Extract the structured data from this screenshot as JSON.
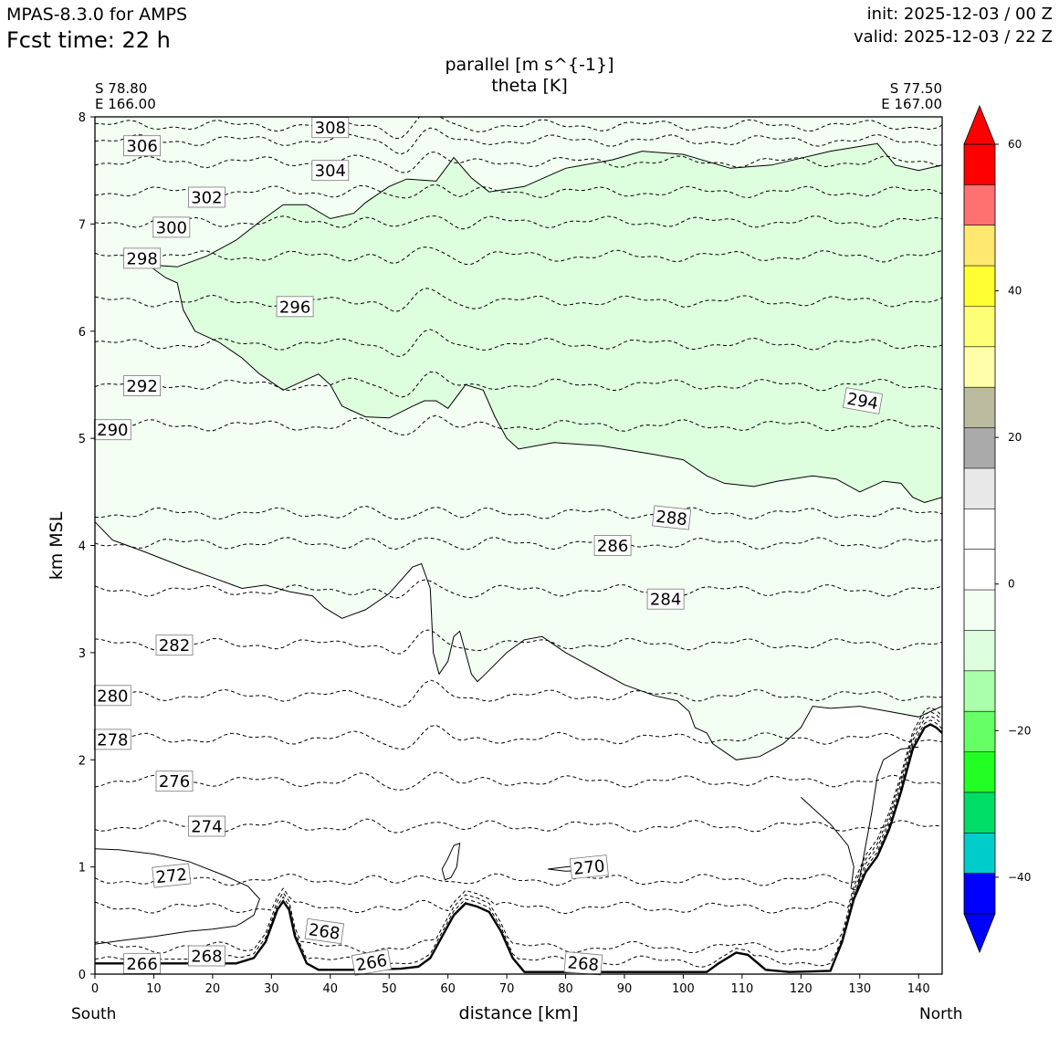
{
  "header": {
    "model": "MPAS-8.3.0 for AMPS",
    "fcst": "Fcst time:   22 h",
    "init": "init: 2025-12-03 / 00 Z",
    "valid": "valid: 2025-12-03 / 22 Z"
  },
  "chart_data": {
    "type": "cross-section contour",
    "title": "parallel [m s^{-1}]",
    "subtitle": "theta [K]",
    "xlabel": "distance [km]",
    "ylabel": "km MSL",
    "xlim": [
      0,
      144
    ],
    "ylim": [
      0,
      8
    ],
    "x_ticks": [
      "0",
      "10",
      "20",
      "30",
      "40",
      "50",
      "60",
      "70",
      "80",
      "90",
      "100",
      "110",
      "120",
      "130",
      "140"
    ],
    "y_ticks": [
      "0",
      "1",
      "2",
      "3",
      "4",
      "5",
      "6",
      "7",
      "8"
    ],
    "start_point": {
      "lat": "S 78.80",
      "lon": "E 166.00",
      "label": "South"
    },
    "end_point": {
      "lat": "S 77.50",
      "lon": "E 167.00",
      "label": "North"
    },
    "colorbar": {
      "levels": [
        -50,
        -45,
        -40,
        -35,
        -30,
        -25,
        -20,
        -15,
        -10,
        -5,
        0,
        5,
        10,
        15,
        20,
        25,
        30,
        35,
        40,
        45,
        50,
        55,
        60
      ],
      "colors": [
        "#0000ff",
        "#00cccc",
        "#00dd66",
        "#22ff22",
        "#66ff66",
        "#aaffaa",
        "#ddffdd",
        "#f2fff2",
        "#ffffff",
        "#ffffff",
        "#e8e8e8",
        "#aaaaaa",
        "#bbbba0",
        "#ffffaa",
        "#ffff77",
        "#ffff33",
        "#ffe870",
        "#ff7070",
        "#ff0000"
      ],
      "tick_labels": [
        "60",
        "40",
        "20",
        "0",
        "−20",
        "−40"
      ],
      "tick_values": [
        60,
        40,
        20,
        0,
        -20,
        -40
      ]
    },
    "theta_levels": [
      266,
      268,
      270,
      272,
      274,
      276,
      278,
      280,
      282,
      284,
      286,
      288,
      290,
      292,
      294,
      296,
      298,
      300,
      302,
      304,
      306,
      308
    ],
    "theta_baseline_heights_km": [
      0.12,
      0.25,
      0.62,
      0.88,
      1.38,
      1.8,
      2.2,
      2.6,
      3.08,
      3.58,
      4.02,
      4.3,
      5.12,
      5.5,
      5.88,
      6.28,
      6.7,
      7.02,
      7.3,
      7.58,
      7.78,
      7.92
    ],
    "contour_labels": [
      {
        "text": "306",
        "x": 8,
        "y": 7.73,
        "rot": 0
      },
      {
        "text": "308",
        "x": 40,
        "y": 7.9,
        "rot": 0
      },
      {
        "text": "304",
        "x": 40,
        "y": 7.5,
        "rot": 0
      },
      {
        "text": "302",
        "x": 19,
        "y": 7.25,
        "rot": 0
      },
      {
        "text": "300",
        "x": 13,
        "y": 6.97,
        "rot": 0
      },
      {
        "text": "298",
        "x": 8,
        "y": 6.68,
        "rot": 0
      },
      {
        "text": "296",
        "x": 34,
        "y": 6.23,
        "rot": 0
      },
      {
        "text": "292",
        "x": 8,
        "y": 5.49,
        "rot": 0
      },
      {
        "text": "290",
        "x": 3,
        "y": 5.08,
        "rot": 0
      },
      {
        "text": "294",
        "x": 130.5,
        "y": 5.35,
        "rot": 10
      },
      {
        "text": "288",
        "x": 98,
        "y": 4.26,
        "rot": 6
      },
      {
        "text": "286",
        "x": 88,
        "y": 4.0,
        "rot": 0
      },
      {
        "text": "284",
        "x": 97,
        "y": 3.5,
        "rot": 0
      },
      {
        "text": "282",
        "x": 13.5,
        "y": 3.07,
        "rot": 0
      },
      {
        "text": "280",
        "x": 3,
        "y": 2.6,
        "rot": 0
      },
      {
        "text": "278",
        "x": 3,
        "y": 2.19,
        "rot": 0
      },
      {
        "text": "276",
        "x": 13.5,
        "y": 1.8,
        "rot": 0
      },
      {
        "text": "274",
        "x": 19,
        "y": 1.38,
        "rot": 0
      },
      {
        "text": "272",
        "x": 13,
        "y": 0.92,
        "rot": -6
      },
      {
        "text": "270",
        "x": 84,
        "y": 1.0,
        "rot": -6
      },
      {
        "text": "268",
        "x": 39,
        "y": 0.4,
        "rot": 8
      },
      {
        "text": "268",
        "x": 19,
        "y": 0.17,
        "rot": 0
      },
      {
        "text": "266",
        "x": 8,
        "y": 0.1,
        "rot": 0
      },
      {
        "text": "266",
        "x": 47,
        "y": 0.11,
        "rot": -10
      },
      {
        "text": "268",
        "x": 83,
        "y": 0.1,
        "rot": 5
      }
    ],
    "shading": [
      {
        "range": "-10 to -5",
        "color": "#f2fff2"
      },
      {
        "range": "-15 to -10",
        "color": "#ddffdd"
      }
    ]
  }
}
